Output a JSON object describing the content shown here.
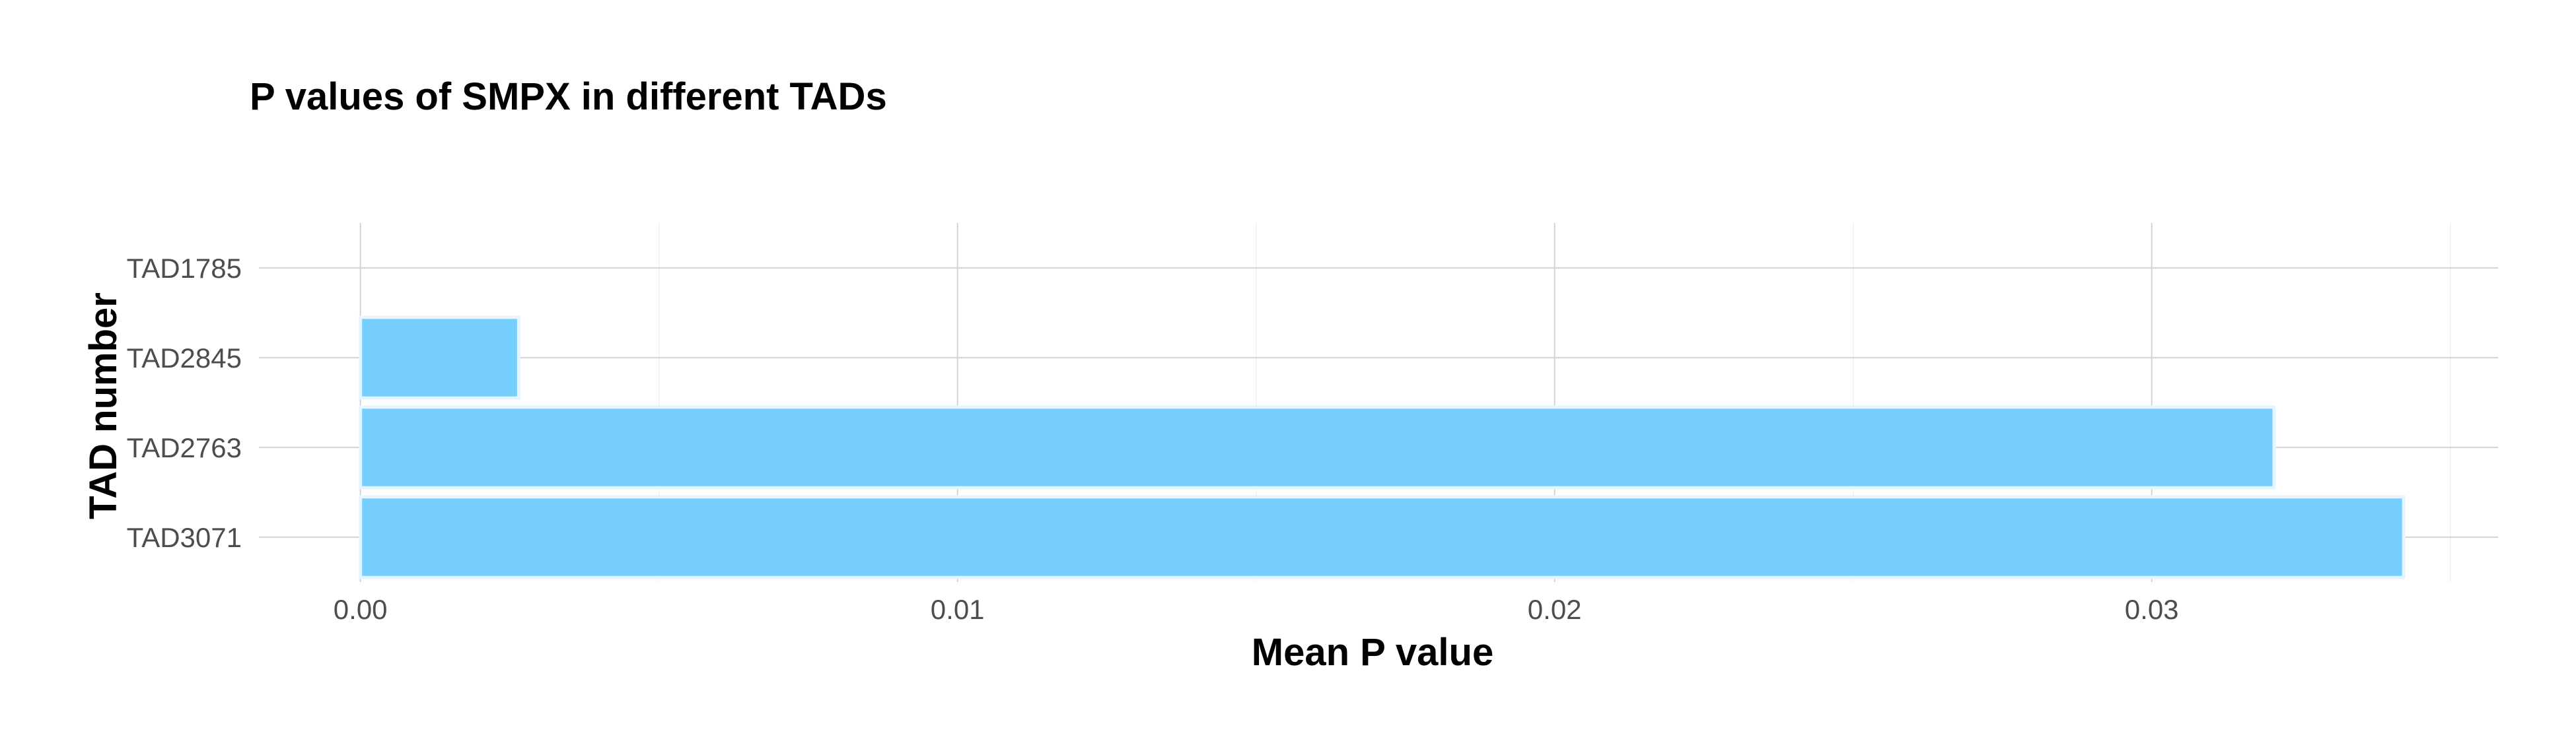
{
  "colors": {
    "bar_fill": "#76cefc",
    "bar_stroke": "#e6f4fd",
    "grid_major": "#d6d6d6",
    "grid_minor": "#ececec",
    "tick_text": "#4d4d4d",
    "title_text": "#000000"
  },
  "chart_data": {
    "type": "bar",
    "orientation": "horizontal",
    "title": "P values of SMPX in different TADs",
    "xlabel": "Mean P value",
    "ylabel": "TAD number",
    "categories": [
      "TAD1785",
      "TAD2845",
      "TAD2763",
      "TAD3071"
    ],
    "values": [
      0,
      0.00265,
      0.03205,
      0.03422
    ],
    "xlim": [
      -0.0017,
      0.0358
    ],
    "xticks": [
      0.0,
      0.01,
      0.02,
      0.03
    ],
    "xtick_labels": [
      "0.00",
      "0.01",
      "0.02",
      "0.03"
    ],
    "x_minor_ticks": [
      0.005,
      0.015,
      0.025,
      0.035
    ],
    "grid": true,
    "legend": "none"
  }
}
